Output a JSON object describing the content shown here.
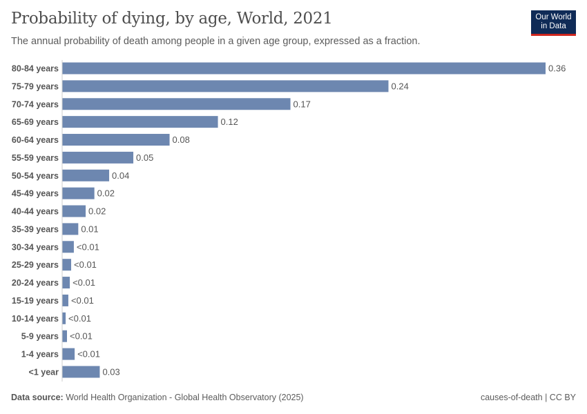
{
  "chart_data": {
    "type": "bar",
    "orientation": "horizontal",
    "title": "Probability of dying, by age, World, 2021",
    "subtitle": "The annual probability of death among people in a given age group, expressed as a fraction.",
    "categories": [
      "80-84 years",
      "75-79 years",
      "70-74 years",
      "65-69 years",
      "60-64 years",
      "55-59 years",
      "50-54 years",
      "45-49 years",
      "40-44 years",
      "35-39 years",
      "30-34 years",
      "25-29 years",
      "20-24 years",
      "15-19 years",
      "10-14 years",
      "5-9 years",
      "1-4 years",
      "<1 year"
    ],
    "values": [
      0.36,
      0.243,
      0.17,
      0.116,
      0.08,
      0.053,
      0.035,
      0.024,
      0.0175,
      0.012,
      0.0087,
      0.0067,
      0.0057,
      0.0046,
      0.0026,
      0.0036,
      0.0093,
      0.028
    ],
    "data_labels": [
      "0.36",
      "0.24",
      "0.17",
      "0.12",
      "0.08",
      "0.05",
      "0.04",
      "0.02",
      "0.02",
      "0.01",
      "<0.01",
      "<0.01",
      "<0.01",
      "<0.01",
      "<0.01",
      "<0.01",
      "<0.01",
      "0.03"
    ],
    "xlim": [
      0,
      0.36
    ],
    "grid": false,
    "bar_color": "#6d87b0"
  },
  "logo": {
    "line1": "Our World",
    "line2": "in Data"
  },
  "footer": {
    "source_label": "Data source:",
    "source_text": "World Health Organization - Global Health Observatory (2025)",
    "right": "causes-of-death | CC BY"
  }
}
